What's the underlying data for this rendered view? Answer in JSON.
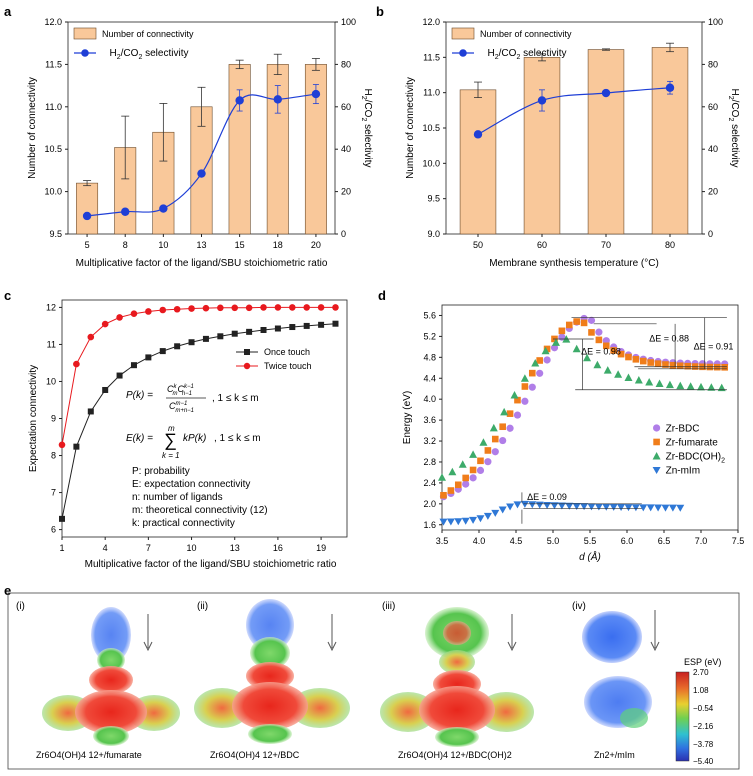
{
  "colors": {
    "bar_fill": "#f9c89a",
    "bar_stroke": "#6b4a2a",
    "blue": "#1f3fd6",
    "red": "#e8191e",
    "black": "#222222",
    "purple": "#b07ee8",
    "orange": "#f07d1a",
    "green": "#3dab6a",
    "zn_blue": "#2f78d6"
  },
  "chart_data": [
    {
      "panel": "a",
      "type": "bar",
      "categories": [
        "5",
        "8",
        "10",
        "13",
        "15",
        "18",
        "20"
      ],
      "bars": {
        "name": "Number of connectivity",
        "values": [
          10.1,
          10.52,
          10.7,
          11.0,
          11.5,
          11.5,
          11.5
        ],
        "errors": [
          0.03,
          0.37,
          0.34,
          0.23,
          0.05,
          0.12,
          0.07
        ]
      },
      "line": {
        "name": "H2/CO2 selectivity",
        "values": [
          8.5,
          10.5,
          12,
          28.5,
          63,
          63.5,
          66
        ],
        "errors": [
          0,
          0,
          0,
          0,
          5,
          6.5,
          4.5
        ]
      },
      "ylim": [
        9.5,
        12.0
      ],
      "y2lim": [
        0,
        100
      ],
      "yticks": [
        "9.5",
        "10.0",
        "10.5",
        "11.0",
        "11.5",
        "12.0"
      ],
      "y2ticks": [
        "0",
        "20",
        "40",
        "60",
        "80",
        "100"
      ],
      "xlabel": "Multiplicative factor of the ligand/SBU stoichiometric ratio",
      "ylabel": "Number of connectivity",
      "y2label": "H2/CO2 selectivity",
      "legend": [
        "Number of connectivity",
        "H2/CO2 selectivity"
      ]
    },
    {
      "panel": "b",
      "type": "bar",
      "categories": [
        "50",
        "60",
        "70",
        "80"
      ],
      "bars": {
        "name": "Number of connectivity",
        "values": [
          11.04,
          11.5,
          11.61,
          11.64
        ],
        "errors": [
          0.11,
          0.05,
          0.01,
          0.06
        ]
      },
      "line": {
        "name": "H2/CO2 selectivity",
        "values": [
          47,
          63,
          66.5,
          69
        ],
        "errors": [
          0,
          5,
          0,
          3
        ]
      },
      "ylim": [
        9.0,
        12.0
      ],
      "y2lim": [
        0,
        100
      ],
      "yticks": [
        "9.0",
        "9.5",
        "10.0",
        "10.5",
        "11.0",
        "11.5",
        "12.0"
      ],
      "y2ticks": [
        "0",
        "20",
        "40",
        "60",
        "80",
        "100"
      ],
      "xlabel": "Membrane synthesis temperature (°C)",
      "ylabel": "Number of connectivity",
      "y2label": "H2/CO2 selectivity",
      "legend": [
        "Number of connectivity",
        "H2/CO2 selectivity"
      ]
    },
    {
      "panel": "c",
      "type": "line",
      "x": [
        1,
        2,
        3,
        4,
        5,
        6,
        7,
        8,
        9,
        10,
        11,
        12,
        13,
        14,
        15,
        16,
        17,
        18,
        19,
        20
      ],
      "series": [
        {
          "name": "Once touch",
          "values": [
            6.29,
            8.24,
            9.19,
            9.77,
            10.16,
            10.44,
            10.65,
            10.82,
            10.95,
            11.06,
            11.15,
            11.22,
            11.29,
            11.34,
            11.39,
            11.43,
            11.47,
            11.5,
            11.53,
            11.56
          ]
        },
        {
          "name": "Twice touch",
          "values": [
            8.29,
            10.47,
            11.2,
            11.55,
            11.73,
            11.83,
            11.89,
            11.93,
            11.95,
            11.97,
            11.98,
            11.99,
            11.99,
            11.99,
            12.0,
            12.0,
            12.0,
            12.0,
            12.0,
            12.0
          ]
        }
      ],
      "xticks": [
        "1",
        "4",
        "7",
        "10",
        "13",
        "16",
        "19"
      ],
      "yticks": [
        "6",
        "7",
        "8",
        "9",
        "10",
        "11",
        "12"
      ],
      "ylim": [
        5.8,
        12.2
      ],
      "xlim": [
        1,
        20.8
      ],
      "xlabel": "Multiplicative factor of the ligand/SBU stoichiometric ratio",
      "ylabel": "Expectation connectivity",
      "legend": [
        "Once touch",
        "Twice touch"
      ],
      "annotations": [
        "P: probability",
        "E: expectation connectivity",
        "n: number of ligands",
        "m: theoretical connectivity (12)",
        "k: practical connectivity"
      ]
    },
    {
      "panel": "d",
      "type": "scatter",
      "xlim": [
        3.5,
        7.5
      ],
      "ylim": [
        1.5,
        5.8
      ],
      "xticks": [
        "3.5",
        "4.0",
        "4.5",
        "5.0",
        "5.5",
        "6.0",
        "6.5",
        "7.0",
        "7.5"
      ],
      "yticks": [
        "1.6",
        "2.0",
        "2.4",
        "2.8",
        "3.2",
        "3.6",
        "4.0",
        "4.4",
        "4.8",
        "5.2",
        "5.6"
      ],
      "xlabel": "d (Å)",
      "ylabel": "Energy (eV)",
      "legend": [
        "Zr-BDC",
        "Zr-fumarate",
        "Zr-BDC(OH)2",
        "Zn-mIm"
      ],
      "annotations": [
        "ΔE = 0.88",
        "ΔE = 0.91",
        "ΔE = 0.98",
        "ΔE = 0.09"
      ],
      "series_params": [
        {
          "name": "Zr-BDC",
          "x_start": 3.52,
          "x_end": 7.38,
          "step": 0.1,
          "peak_x": 5.5,
          "peak_y": 5.56,
          "base": 1.95,
          "left_width": 1.15,
          "plateau": 4.67,
          "decay": 0.32
        },
        {
          "name": "Zr-fumarate",
          "x_start": 3.52,
          "x_end": 7.38,
          "step": 0.1,
          "peak_x": 5.4,
          "peak_y": 5.5,
          "base": 1.85,
          "left_width": 1.2,
          "plateau": 4.6,
          "decay": 0.42
        },
        {
          "name": "Zr-BDC(OH)2",
          "x_start": 3.5,
          "x_end": 7.35,
          "step": 0.14,
          "peak_x": 5.2,
          "peak_y": 5.15,
          "base": 2.3,
          "left_width": 1.05,
          "plateau": 4.2,
          "decay": 0.55
        },
        {
          "name": "Zn-mIm",
          "x_start": 3.52,
          "x_end": 6.72,
          "step": 0.1,
          "peak_x": 4.6,
          "peak_y": 2.0,
          "base": 1.66,
          "left_width": 0.45,
          "plateau": 1.91,
          "decay": 1.2
        }
      ]
    }
  ],
  "panel_e": {
    "labels": [
      "Zr6O4(OH)4 12+/fumarate",
      "Zr6O4(OH)4 12+/BDC",
      "Zr6O4(OH)4 12+/BDC(OH)2",
      "Zn2+/mIm"
    ],
    "sub_labels": [
      "(i)",
      "(ii)",
      "(iii)",
      "(iv)"
    ],
    "colorbar": {
      "title": "ESP (eV)",
      "ticks": [
        "2.70",
        "1.08",
        "−0.54",
        "−2.16",
        "−3.78",
        "−5.40"
      ]
    }
  },
  "panel_letters": [
    "a",
    "b",
    "c",
    "d",
    "e"
  ]
}
